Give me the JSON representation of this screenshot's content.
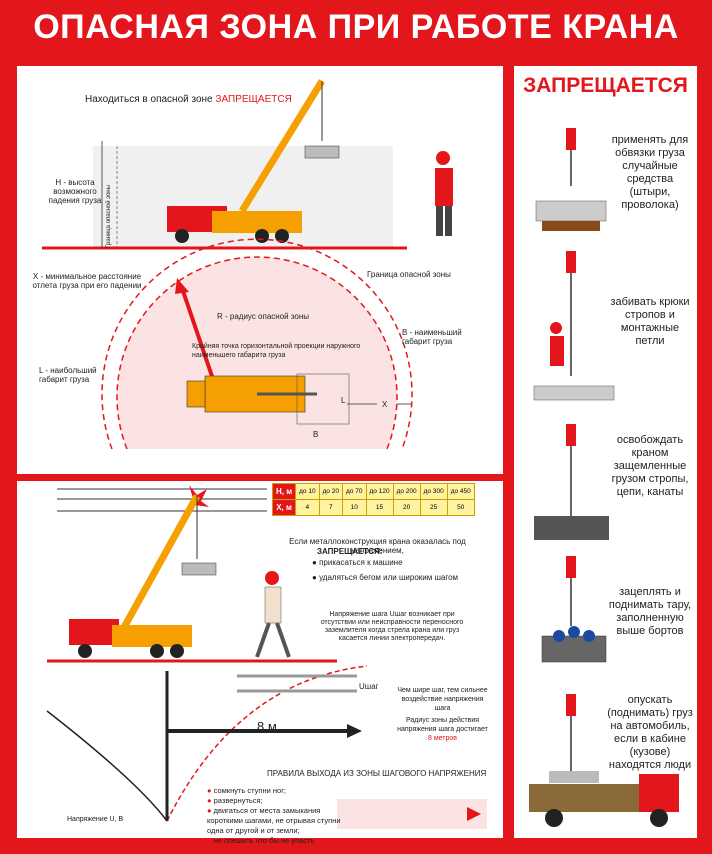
{
  "title": "ОПАСНАЯ ЗОНА ПРИ РАБОТЕ КРАНА",
  "colors": {
    "brand_red": "#e3161c",
    "crane_orange": "#f5a000",
    "table_yellow": "#fff3a0"
  },
  "panel1": {
    "heading_prefix": "Находиться в опасной зоне",
    "heading_forbidden": "ЗАПРЕЩАЕТСЯ",
    "h_label": "Н - высота возможного падения груза",
    "vertical_label": "Граница опасной зоны",
    "x_label": "Х - минимальное расстояние отлета груза при его падении",
    "zone_boundary": "Граница опасной зоны",
    "r_label": "R - радиус опасной зоны",
    "b_label": "В - наименьший габарит груза",
    "extreme_point": "Крайняя точка горизонтальной проекции наружного наименьшего габарита груза",
    "l_label": "L - наибольший габарит груза",
    "dim_l": "L",
    "dim_x": "X",
    "dim_b": "B"
  },
  "panel2": {
    "table": {
      "h_header": "Н, м",
      "x_header": "Х, м",
      "h_values": [
        "до 10",
        "до 20",
        "до 70",
        "до 120",
        "до 200",
        "до 300",
        "до 450"
      ],
      "x_values": [
        "4",
        "7",
        "10",
        "15",
        "20",
        "25",
        "50"
      ]
    },
    "voltage_intro": "Если металлоконструкция крана оказалась под напряжением,",
    "voltage_forbidden": "ЗАПРЕЩАЕТСЯ:",
    "voltage_items": [
      "прикасаться к машине",
      "удаляться бегом или широким шагом"
    ],
    "step_voltage_text": "Напряжение шага Uшаг возникает при отсутствии или неисправности переносного заземлителя когда стрела крана или груз касается линии электропередач.",
    "u_step": "Uшаг",
    "wider_step": "Чем шире шаг, тем сильнее воздействие напряжения шага",
    "radius_text": "Радиус зоны действия напряжения шага достигает",
    "radius_value": "8 метров",
    "distance_label": "8 м",
    "exit_rules_title": "ПРАВИЛА ВЫХОДА ИЗ ЗОНЫ ШАГОВОГО НАПРЯЖЕНИЯ",
    "exit_rules": [
      "сомкнуть ступни ног;",
      "развернуться;",
      "двигаться от места замыкания короткими шагами, не отрывая ступни одна от другой и от земли;",
      "не спешить что бы не упасть"
    ],
    "voltage_axis": "Напряжение U, B"
  },
  "panel3": {
    "title": "ЗАПРЕЩАЕТСЯ",
    "items": [
      "применять для обвязки груза случайные средства (штыри, проволока)",
      "забивать крюки стропов и монтажные петли",
      "освобождать краном защемленные грузом стропы, цепи, канаты",
      "зацеплять и поднимать тару, заполненную выше бортов",
      "опускать (поднимать) груз на автомобиль, если в кабине (кузове) находятся люди"
    ]
  }
}
